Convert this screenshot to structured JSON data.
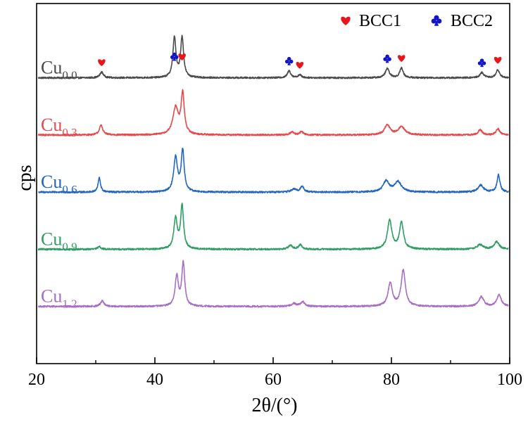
{
  "chart_data": {
    "type": "line",
    "title": "",
    "xlabel": "2θ/(°)",
    "ylabel": "cps",
    "xlim": [
      20,
      100
    ],
    "x_ticks": [
      "20",
      "40",
      "60",
      "80",
      "100"
    ],
    "y_ticks_visible": false,
    "grid": false,
    "legend": {
      "placement": "top-right",
      "entries": [
        {
          "label": "BCC1",
          "marker": "heart",
          "color": "#e8161b"
        },
        {
          "label": "BCC2",
          "marker": "club",
          "color": "#1515c8"
        }
      ]
    },
    "series": [
      {
        "label_main": "Cu",
        "label_sub": "0.0",
        "color": "#4a4a4a",
        "baseline": 5.0,
        "peaks": [
          [
            31.0,
            0.1,
            0.35
          ],
          [
            43.3,
            0.7,
            0.3
          ],
          [
            44.6,
            0.7,
            0.3
          ],
          [
            62.7,
            0.12,
            0.35
          ],
          [
            64.5,
            0.05,
            0.35
          ],
          [
            79.3,
            0.16,
            0.4
          ],
          [
            81.7,
            0.17,
            0.35
          ],
          [
            95.3,
            0.09,
            0.4
          ],
          [
            98.0,
            0.14,
            0.35
          ]
        ]
      },
      {
        "label_main": "Cu",
        "label_sub": "0.3",
        "color": "#e8494b",
        "baseline": 4.0,
        "peaks": [
          [
            30.9,
            0.17,
            0.35
          ],
          [
            43.5,
            0.47,
            0.55
          ],
          [
            44.7,
            0.7,
            0.32
          ],
          [
            63.2,
            0.05,
            0.4
          ],
          [
            64.8,
            0.06,
            0.35
          ],
          [
            79.3,
            0.17,
            0.55
          ],
          [
            81.7,
            0.14,
            0.7
          ],
          [
            95.0,
            0.09,
            0.4
          ],
          [
            98.0,
            0.11,
            0.35
          ]
        ]
      },
      {
        "label_main": "Cu",
        "label_sub": "0.6",
        "color": "#2166c2",
        "baseline": 3.0,
        "peaks": [
          [
            30.6,
            0.25,
            0.25
          ],
          [
            43.5,
            0.6,
            0.38
          ],
          [
            44.7,
            0.72,
            0.3
          ],
          [
            63.5,
            0.05,
            0.5
          ],
          [
            64.9,
            0.1,
            0.35
          ],
          [
            79.1,
            0.19,
            0.6
          ],
          [
            81.1,
            0.18,
            0.7
          ],
          [
            95.1,
            0.12,
            0.55
          ],
          [
            98.1,
            0.3,
            0.3
          ]
        ]
      },
      {
        "label_main": "Cu",
        "label_sub": "0.9",
        "color": "#2e9e63",
        "baseline": 2.0,
        "peaks": [
          [
            30.6,
            0.05,
            0.3
          ],
          [
            43.5,
            0.53,
            0.35
          ],
          [
            44.6,
            0.75,
            0.3
          ],
          [
            62.9,
            0.07,
            0.4
          ],
          [
            64.6,
            0.08,
            0.35
          ],
          [
            79.7,
            0.5,
            0.45
          ],
          [
            81.7,
            0.47,
            0.4
          ],
          [
            95.0,
            0.08,
            0.6
          ],
          [
            97.8,
            0.13,
            0.5
          ]
        ]
      },
      {
        "label_main": "Cu",
        "label_sub": "1.2",
        "color": "#a66ec4",
        "baseline": 1.0,
        "peaks": [
          [
            31.1,
            0.1,
            0.35
          ],
          [
            43.7,
            0.52,
            0.33
          ],
          [
            44.8,
            0.75,
            0.3
          ],
          [
            63.5,
            0.05,
            0.5
          ],
          [
            65.0,
            0.08,
            0.4
          ],
          [
            79.8,
            0.4,
            0.45
          ],
          [
            82.0,
            0.63,
            0.42
          ],
          [
            95.2,
            0.17,
            0.5
          ],
          [
            98.2,
            0.2,
            0.45
          ]
        ]
      }
    ],
    "annotations": [
      {
        "x": 31.0,
        "type": "BCC1"
      },
      {
        "x": 43.3,
        "type": "BCC2"
      },
      {
        "x": 44.6,
        "type": "BCC1"
      },
      {
        "x": 62.7,
        "type": "BCC2"
      },
      {
        "x": 64.5,
        "type": "BCC1"
      },
      {
        "x": 79.3,
        "type": "BCC2"
      },
      {
        "x": 81.7,
        "type": "BCC1"
      },
      {
        "x": 95.3,
        "type": "BCC2"
      },
      {
        "x": 98.0,
        "type": "BCC1"
      }
    ]
  }
}
